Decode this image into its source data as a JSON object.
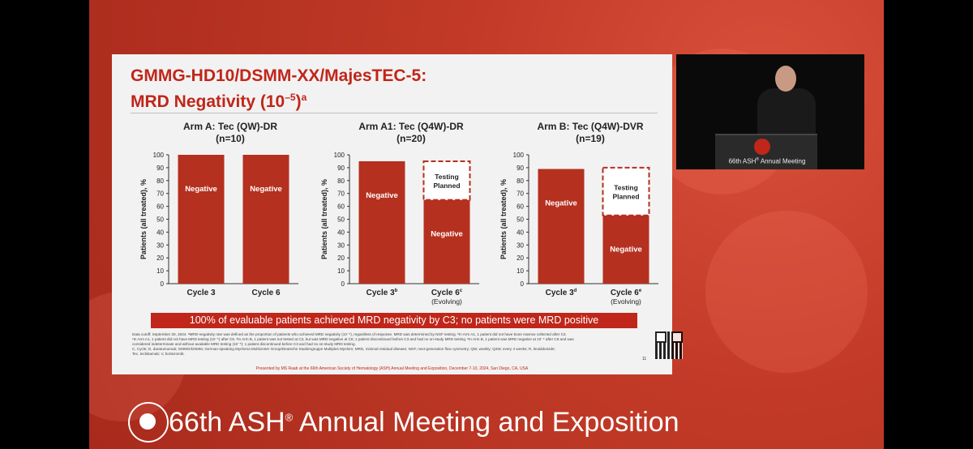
{
  "slide": {
    "title_line1": "GMMG-HD10/DSMM-XX/MajesTEC-5:",
    "title_line2": "MRD Negativity (10",
    "title_exp": "–5",
    "title_close": ")",
    "title_sup": "a"
  },
  "panels": [
    {
      "heading": "Arm A: Tec (QW)-DR",
      "n": "(n=10)"
    },
    {
      "heading": "Arm A1: Tec (Q4W)-DR",
      "n": "(n=20)"
    },
    {
      "heading": "Arm B: Tec (Q4W)-DVR",
      "n": "(n=19)"
    }
  ],
  "chart_data": [
    {
      "type": "bar",
      "title": "Arm A: Tec (QW)-DR (n=10)",
      "ylabel": "Patients (all treated), %",
      "ylim": [
        0,
        100
      ],
      "yticks": [
        0,
        10,
        20,
        30,
        40,
        50,
        60,
        70,
        80,
        90,
        100
      ],
      "categories": [
        "Cycle 3",
        "Cycle 6"
      ],
      "category_sups": [
        "",
        ""
      ],
      "category_sublabels": [
        "",
        ""
      ],
      "series": [
        {
          "name": "Negative",
          "values": [
            100,
            100
          ]
        }
      ],
      "planned": [
        0,
        0
      ],
      "planned_label": "Testing Planned"
    },
    {
      "type": "bar",
      "title": "Arm A1: Tec (Q4W)-DR (n=20)",
      "ylabel": "Patients (all treated), %",
      "ylim": [
        0,
        100
      ],
      "yticks": [
        0,
        10,
        20,
        30,
        40,
        50,
        60,
        70,
        80,
        90,
        100
      ],
      "categories": [
        "Cycle 3",
        "Cycle 6"
      ],
      "category_sups": [
        "b",
        "c"
      ],
      "category_sublabels": [
        "",
        "(Evolving)"
      ],
      "series": [
        {
          "name": "Negative",
          "values": [
            95,
            65
          ]
        }
      ],
      "planned": [
        0,
        30
      ],
      "planned_label": "Testing Planned"
    },
    {
      "type": "bar",
      "title": "Arm B: Tec (Q4W)-DVR (n=19)",
      "ylabel": "Patients (all treated), %",
      "ylim": [
        0,
        100
      ],
      "yticks": [
        0,
        10,
        20,
        30,
        40,
        50,
        60,
        70,
        80,
        90,
        100
      ],
      "categories": [
        "Cycle 3",
        "Cycle 6"
      ],
      "category_sups": [
        "d",
        "e"
      ],
      "category_sublabels": [
        "",
        "(Evolving)"
      ],
      "series": [
        {
          "name": "Negative",
          "values": [
            89,
            53
          ]
        }
      ],
      "planned": [
        0,
        37
      ],
      "planned_label": "Testing Planned"
    }
  ],
  "banner": "100% of evaluable patients achieved MRD negativity by C3; no patients were MRD positive",
  "footnotes": [
    "Data cutoff: September 30, 2024. ᵃMRD-negativity rate was defined as the proportion of patients who achieved MRD negativity (10⁻⁵), regardless of response. MRD was determined by NGF testing. ᵇIn Arm A1, 1 patient did not have bone marrow collected after C3.",
    "ᶜIn Arm A1, 1 patient did not have MRD testing (10⁻⁵) after C6. ᵈIn Arm B, 1 patient was not tested at C3, but was MRD-negative at C6; 1 patient discontinued before C3 and had no on-study MRD testing. ᵉIn Arm B, 1 patient was MRD negative at 10⁻⁴ after C6 and was",
    "considered indeterminate and without available MRD testing (10⁻⁵); 1 patient discontinued before C3 and had no on-study MRD testing.",
    "C, Cycle; D, daratumumab; GMMG/DSMM, German-speaking Myeloma Multicenter Group/Deutsche Studiengruppe Multiples Myelom; MRD, minimal residual disease; NGF, next-generation flow cytometry; QW, weekly; Q4W, every 4 weeks; R, lenalidomide;",
    "Tec, teclistamab; V, bortezomib."
  ],
  "page_number": "11",
  "presented_by": "Presented by MS Raab at the 66th American Society of Hematology (ASH) Annual Meeting and Exposition, December 7-10, 2024, San Diego, CA, USA",
  "camera": {
    "podium_text": "66th ASH",
    "podium_reg": "®",
    "podium_text2": " Annual Meeting"
  },
  "bottom": {
    "title_a": "66th ASH",
    "reg": "®",
    "title_b": " Annual Meeting and Exposition"
  },
  "colors": {
    "bar": "#b5301f",
    "brand_red": "#c0261a"
  }
}
